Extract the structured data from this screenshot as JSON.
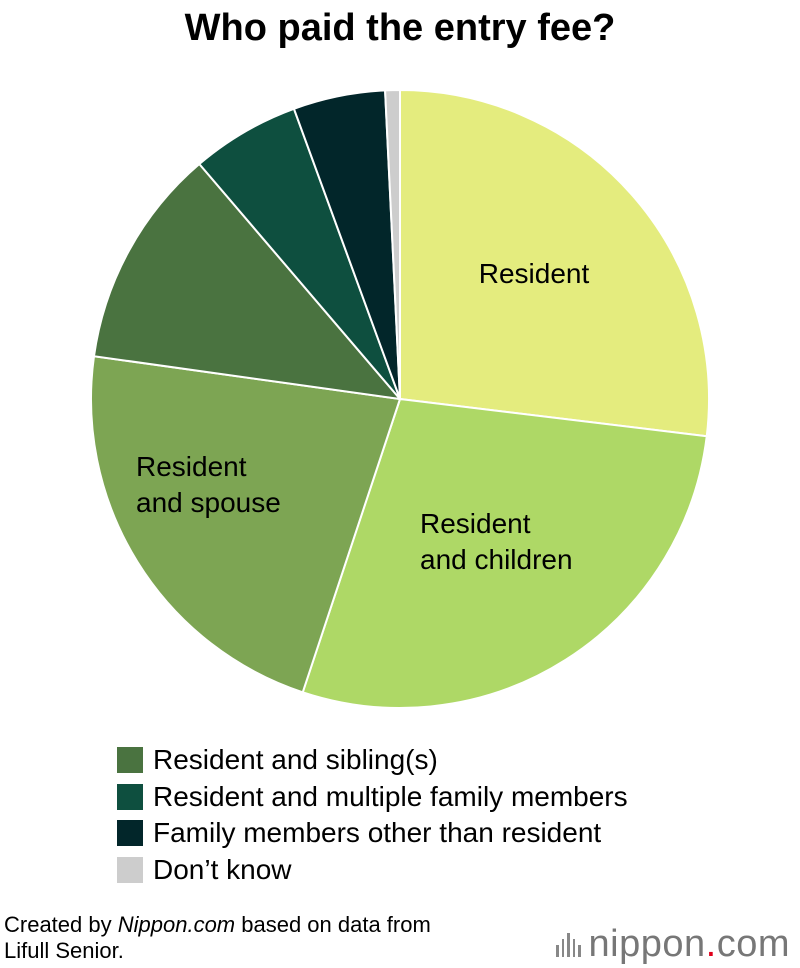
{
  "chart_data": {
    "type": "pie",
    "title": "Who paid the entry fee?",
    "start_angle_deg": 0,
    "direction": "clockwise",
    "slices": [
      {
        "name": "Resident",
        "value": 28.0,
        "color": "#e4ec7e",
        "label_lines": [
          "Resident"
        ]
      },
      {
        "name": "Resident and children",
        "value": 29.3,
        "color": "#aed866",
        "label_lines": [
          "Resident",
          "and children"
        ]
      },
      {
        "name": "Resident and spouse",
        "value": 23.0,
        "color": "#7da553",
        "label_lines": [
          "Resident",
          "and spouse"
        ]
      },
      {
        "name": "Resident and sibling(s)",
        "value": 12.0,
        "color": "#4a7340",
        "label_lines": []
      },
      {
        "name": "Resident and multiple family members",
        "value": 5.9,
        "color": "#0e4f3f",
        "label_lines": []
      },
      {
        "name": "Family members other than resident",
        "value": 5.0,
        "color": "#02262a",
        "label_lines": []
      },
      {
        "name": "Don’t know",
        "value": 0.8,
        "color": "#cdcdcd",
        "label_lines": []
      }
    ],
    "legend": {
      "placement": "bottom",
      "entries": [
        {
          "label": "Resident and sibling(s)",
          "color": "#4a7340"
        },
        {
          "label": "Resident and multiple family members",
          "color": "#0e4f3f"
        },
        {
          "label": "Family members other than resident",
          "color": "#02262a"
        },
        {
          "label": "Don’t know",
          "color": "#cdcdcd"
        }
      ]
    }
  },
  "footer": {
    "credit_prefix": "Created by ",
    "credit_site": "Nippon.com",
    "credit_suffix": " based on data from",
    "credit_line2": "Lifull Senior."
  },
  "brand": {
    "name": "nippon",
    "dot": ".",
    "tld": "com",
    "accent_color": "#e0001b"
  }
}
